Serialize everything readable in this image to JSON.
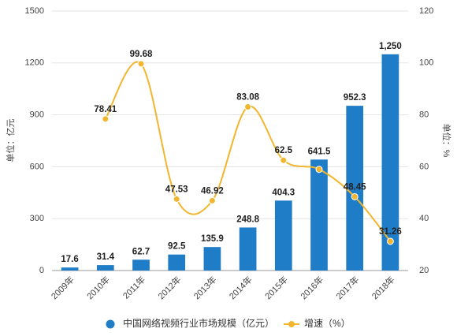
{
  "chart_data": {
    "type": "bar",
    "categories": [
      "2009年",
      "2010年",
      "2011年",
      "2012年",
      "2013年",
      "2014年",
      "2015年",
      "2016年",
      "2017年",
      "2018年"
    ],
    "series": [
      {
        "name": "中国网络视频行业市场规模（亿元）",
        "type": "bar",
        "color": "#1f7cc7",
        "values": [
          17.6,
          31.4,
          62.7,
          92.5,
          135.9,
          248.8,
          404.3,
          641.5,
          952.3,
          1250
        ],
        "value_labels": [
          "17.6",
          "31.4",
          "62.7",
          "92.5",
          "135.9",
          "248.8",
          "404.3",
          "641.5",
          "952.3",
          "1,250"
        ]
      },
      {
        "name": "增速（%）",
        "type": "line",
        "axis": "y2",
        "color": "#f2b62e",
        "values": [
          null,
          78.41,
          99.68,
          47.53,
          46.92,
          83.08,
          62.5,
          59,
          48.45,
          31.26
        ],
        "value_labels": [
          null,
          "78.41",
          "99.68",
          "47.53",
          "46.92",
          "83.08",
          "62.5",
          null,
          "48.45",
          "31.26"
        ]
      }
    ],
    "ylabel": "单位：亿元",
    "y2label": "单位：%",
    "ylim": [
      0,
      1500
    ],
    "yticks": [
      0,
      300,
      600,
      900,
      1200,
      1500
    ],
    "y2lim": [
      20,
      120
    ],
    "y2ticks": [
      20,
      40,
      60,
      80,
      100,
      120
    ],
    "grid": true,
    "legend": "bottom"
  }
}
